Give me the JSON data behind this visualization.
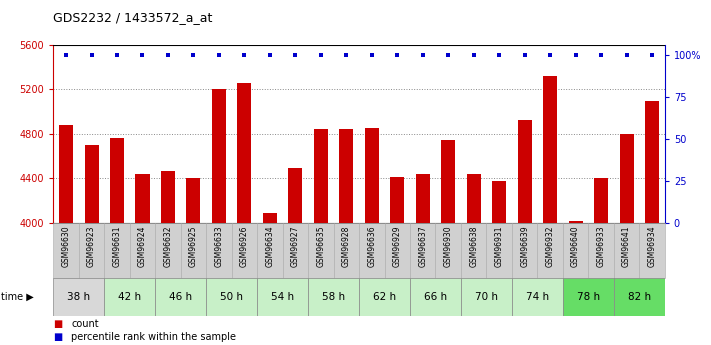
{
  "title": "GDS2232 / 1433572_a_at",
  "categories": [
    "GSM96630",
    "GSM96923",
    "GSM96631",
    "GSM96924",
    "GSM96632",
    "GSM96925",
    "GSM96633",
    "GSM96926",
    "GSM96634",
    "GSM96927",
    "GSM96635",
    "GSM96928",
    "GSM96636",
    "GSM96929",
    "GSM96637",
    "GSM96930",
    "GSM96638",
    "GSM96931",
    "GSM96639",
    "GSM96932",
    "GSM96640",
    "GSM96933",
    "GSM96641",
    "GSM96934"
  ],
  "values": [
    4880,
    4700,
    4760,
    4435,
    4460,
    4405,
    5200,
    5260,
    4090,
    4490,
    4840,
    4840,
    4850,
    4410,
    4435,
    4740,
    4435,
    4370,
    4920,
    5320,
    4015,
    4400,
    4800,
    5090
  ],
  "percentile_values": [
    100,
    100,
    100,
    100,
    100,
    100,
    100,
    100,
    100,
    100,
    100,
    100,
    100,
    100,
    100,
    100,
    100,
    100,
    100,
    100,
    100,
    100,
    100,
    100
  ],
  "bar_color": "#cc0000",
  "percentile_color": "#0000cc",
  "ylim": [
    4000,
    5600
  ],
  "yticks": [
    4000,
    4400,
    4800,
    5200,
    5600
  ],
  "right_ytick_labels": [
    "0",
    "25",
    "50",
    "75",
    "100%"
  ],
  "right_ytick_vals": [
    0,
    25,
    50,
    75,
    100
  ],
  "time_groups": [
    {
      "label": "38 h",
      "start": 0,
      "end": 2
    },
    {
      "label": "42 h",
      "start": 2,
      "end": 4
    },
    {
      "label": "46 h",
      "start": 4,
      "end": 6
    },
    {
      "label": "50 h",
      "start": 6,
      "end": 8
    },
    {
      "label": "54 h",
      "start": 8,
      "end": 10
    },
    {
      "label": "58 h",
      "start": 10,
      "end": 12
    },
    {
      "label": "62 h",
      "start": 12,
      "end": 14
    },
    {
      "label": "66 h",
      "start": 14,
      "end": 16
    },
    {
      "label": "70 h",
      "start": 16,
      "end": 18
    },
    {
      "label": "74 h",
      "start": 18,
      "end": 20
    },
    {
      "label": "78 h",
      "start": 20,
      "end": 22
    },
    {
      "label": "82 h",
      "start": 22,
      "end": 24
    }
  ],
  "time_colors": [
    "#d8d8d8",
    "#c8f0c8",
    "#c8f0c8",
    "#c8f0c8",
    "#c8f0c8",
    "#c8f0c8",
    "#c8f0c8",
    "#c8f0c8",
    "#c8f0c8",
    "#c8f0c8",
    "#66dd66",
    "#66dd66"
  ],
  "xtick_bg": "#d0d0d0",
  "grid_color": "#888888",
  "dotted_lines": [
    4400,
    4800,
    5200
  ]
}
